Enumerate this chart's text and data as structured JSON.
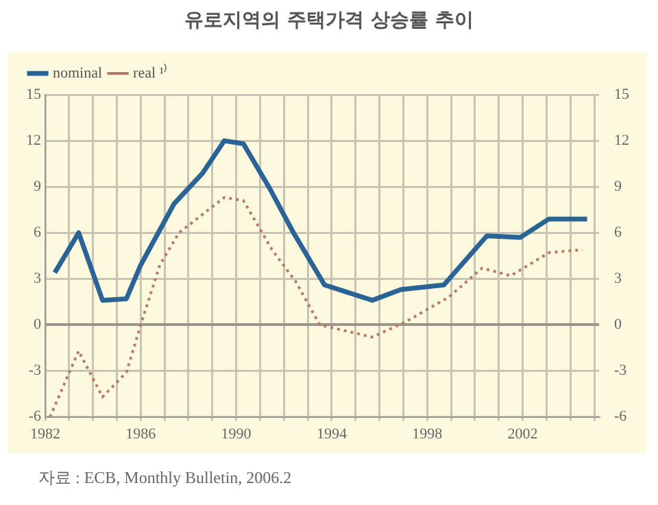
{
  "chart_data": {
    "type": "line",
    "title": "유로지역의 주택가격 상승률 추이",
    "annotations": [
      "자료 : ECB, Monthly Bulletin, 2006.2"
    ],
    "series": [
      {
        "name": "nominal",
        "color": "#2a6496",
        "line_style": "solid",
        "x": [
          1982.4,
          1983.4,
          1984.4,
          1985.4,
          1986,
          1987.4,
          1988.6,
          1989.5,
          1990.3,
          1991.4,
          1992.4,
          1993.7,
          1995.7,
          1996.9,
          1998.7,
          2000.5,
          2001.9,
          2003.1,
          2004.7
        ],
        "values": [
          3.4,
          6,
          1.6,
          1.7,
          3.9,
          7.9,
          9.9,
          12,
          11.8,
          8.9,
          6,
          2.6,
          1.6,
          2.3,
          2.6,
          5.8,
          5.7,
          6.9,
          6.9
        ]
      },
      {
        "name": "real ¹⁾",
        "color": "#b8786a",
        "line_style": "dotted",
        "x": [
          1982.2,
          1983.4,
          1984.4,
          1985.4,
          1986,
          1986.8,
          1987.6,
          1989.5,
          1990.3,
          1991.5,
          1992.5,
          1993.5,
          1995.7,
          1997.1,
          1998.9,
          2000.3,
          2001.5,
          2003.1,
          2004.5
        ],
        "values": [
          -6,
          -1.7,
          -4.7,
          -3.1,
          0,
          3.9,
          6,
          8.3,
          8.1,
          4.9,
          2.8,
          0,
          -0.8,
          0.2,
          1.8,
          3.7,
          3.2,
          4.7,
          4.9
        ]
      }
    ],
    "xlim": [
      1982,
      2005.2
    ],
    "xticks": [
      1982,
      {
        "value": 1983,
        "label": null
      },
      {
        "value": 1984,
        "label": null
      },
      {
        "value": 1985,
        "label": null
      },
      1986,
      {
        "value": 1987,
        "label": null
      },
      {
        "value": 1988,
        "label": null
      },
      {
        "value": 1989,
        "label": null
      },
      1990,
      {
        "value": 1991,
        "label": null
      },
      {
        "value": 1992,
        "label": null
      },
      {
        "value": 1993,
        "label": null
      },
      1994,
      {
        "value": 1995,
        "label": null
      },
      {
        "value": 1996,
        "label": null
      },
      {
        "value": 1997,
        "label": null
      },
      1998,
      {
        "value": 1999,
        "label": null
      },
      {
        "value": 2000,
        "label": null
      },
      {
        "value": 2001,
        "label": null
      },
      2002,
      {
        "value": 2003,
        "label": null
      },
      {
        "value": 2004,
        "label": null
      },
      {
        "value": 2005,
        "label": null
      }
    ],
    "ylim": [
      -6,
      15
    ],
    "yticks": [
      -6,
      -3,
      0,
      3,
      6,
      9,
      12,
      15
    ],
    "y2lim": [
      -6,
      15
    ],
    "y2ticks": [
      -6,
      -3,
      0,
      3,
      6,
      9,
      12,
      15
    ],
    "grid": true,
    "legend": "top left",
    "marker": "none"
  }
}
